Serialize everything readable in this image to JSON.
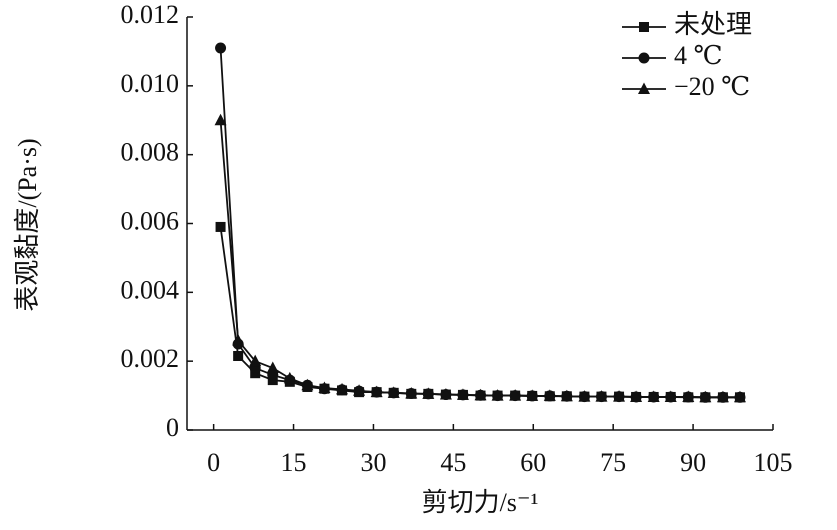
{
  "chart_data": {
    "type": "line",
    "xlabel": "剪切力/s⁻¹",
    "ylabel": "表观黏度/(Pa·s)",
    "x": [
      1.3,
      4.6,
      7.8,
      11.1,
      14.3,
      17.6,
      20.8,
      24.1,
      27.3,
      30.6,
      33.8,
      37.1,
      40.3,
      43.6,
      46.8,
      50.1,
      53.3,
      56.6,
      59.8,
      63.1,
      66.3,
      69.6,
      72.8,
      76.1,
      79.3,
      82.6,
      85.8,
      89.1,
      92.3,
      95.6,
      98.8
    ],
    "series": [
      {
        "name": "未处理",
        "color": "#111111",
        "marker": "square",
        "values": [
          0.0059,
          0.00215,
          0.00165,
          0.00145,
          0.0014,
          0.00125,
          0.0012,
          0.00115,
          0.0011,
          0.0011,
          0.00108,
          0.00105,
          0.00105,
          0.00103,
          0.00102,
          0.001,
          0.001,
          0.001,
          0.00099,
          0.00098,
          0.00098,
          0.00097,
          0.00097,
          0.00097,
          0.00096,
          0.00096,
          0.00096,
          0.00095,
          0.00095,
          0.00095,
          0.00095
        ]
      },
      {
        "name": "4 ℃",
        "color": "#111111",
        "marker": "circle",
        "values": [
          0.0111,
          0.0025,
          0.0018,
          0.0016,
          0.00145,
          0.0013,
          0.0012,
          0.00117,
          0.00113,
          0.0011,
          0.00108,
          0.00106,
          0.00105,
          0.00103,
          0.00102,
          0.00101,
          0.001,
          0.001,
          0.00099,
          0.00099,
          0.00098,
          0.00097,
          0.00097,
          0.00097,
          0.00096,
          0.00096,
          0.00096,
          0.00096,
          0.00095,
          0.00095,
          0.00095
        ]
      },
      {
        "name": "−20 ℃",
        "color": "#111111",
        "marker": "triangle",
        "values": [
          0.009,
          0.0026,
          0.002,
          0.0018,
          0.0015,
          0.0013,
          0.00122,
          0.00118,
          0.00114,
          0.0011,
          0.00108,
          0.00106,
          0.00105,
          0.00103,
          0.00102,
          0.00101,
          0.001,
          0.001,
          0.00099,
          0.00099,
          0.00098,
          0.00097,
          0.00097,
          0.00097,
          0.00096,
          0.00096,
          0.00096,
          0.00096,
          0.00095,
          0.00095,
          0.00095
        ]
      }
    ],
    "xlim": [
      -5,
      105
    ],
    "xticks": [
      0,
      15,
      30,
      45,
      60,
      75,
      90,
      105
    ],
    "ylim": [
      0,
      0.012
    ],
    "yticks": [
      0,
      0.002,
      0.004,
      0.006,
      0.008,
      {
        "value": 0.01,
        "label": "0.010"
      },
      0.012
    ],
    "legend": "upper right",
    "grid": false
  }
}
